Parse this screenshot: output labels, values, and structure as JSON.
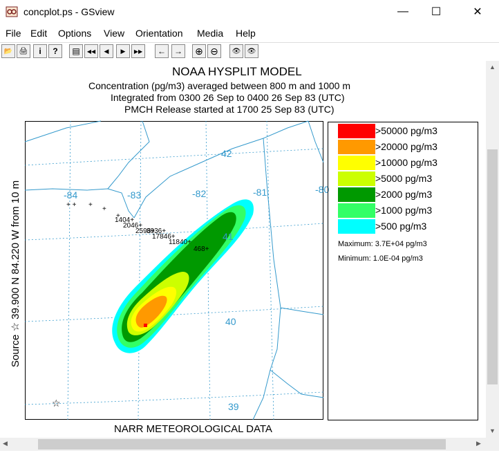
{
  "window": {
    "title": "concplot.ps - GSview",
    "minimize": "—",
    "maximize": "☐",
    "close": "✕"
  },
  "menu": [
    "File",
    "Edit",
    "Options",
    "View",
    "Orientation",
    "Media",
    "Help"
  ],
  "toolbar": [
    {
      "name": "open-icon",
      "glyph": "📂"
    },
    {
      "name": "print-icon",
      "glyph": "🖨"
    },
    {
      "name": "info-icon",
      "glyph": "i"
    },
    {
      "name": "help-icon",
      "glyph": "?"
    },
    {
      "name": "goto-page-icon",
      "glyph": "▤"
    },
    {
      "name": "first-page-icon",
      "glyph": "◀◀"
    },
    {
      "name": "prev-page-icon",
      "glyph": "◀"
    },
    {
      "name": "next-page-icon",
      "glyph": "▶"
    },
    {
      "name": "last-page-icon",
      "glyph": "▶▶"
    },
    {
      "name": "back-icon",
      "glyph": "←"
    },
    {
      "name": "forward-icon",
      "glyph": "→"
    },
    {
      "name": "zoom-in-icon",
      "glyph": "⊕"
    },
    {
      "name": "zoom-out-icon",
      "glyph": "⊖"
    },
    {
      "name": "view-abc-icon",
      "glyph": "👁"
    },
    {
      "name": "view-full-icon",
      "glyph": "👁"
    }
  ],
  "plot": {
    "title": "NOAA HYSPLIT MODEL",
    "line1": "Concentration  (pg/m3) averaged between   800 m and  1000 m",
    "line2": "Integrated from 0300 26 Sep to 0400 26 Sep 83 (UTC)",
    "line3": "PMCH Release started at 1700 25 Sep 83 (UTC)",
    "side_label": "Source ☆  39.900  N  84.220  W        from   10 m",
    "footer": "NARR METEOROLOGICAL DATA",
    "lat_labels": [
      "42",
      "41",
      "40",
      "39"
    ],
    "lon_labels": [
      "-84",
      "-83",
      "-82",
      "-81",
      "-80"
    ],
    "sampler_labels": [
      "1404+",
      "2046+",
      "2596+",
      "3936+",
      "17846+",
      "11840+",
      "468+"
    ]
  },
  "legend": {
    "items": [
      {
        "label": ">50000 pg/m3",
        "color": "#ff0000"
      },
      {
        "label": ">20000 pg/m3",
        "color": "#ff9900"
      },
      {
        "label": ">10000 pg/m3",
        "color": "#ffff00"
      },
      {
        "label": ">5000 pg/m3",
        "color": "#ccff00"
      },
      {
        "label": ">2000 pg/m3",
        "color": "#009900"
      },
      {
        "label": ">1000 pg/m3",
        "color": "#33ff66"
      },
      {
        "label": ">500 pg/m3",
        "color": "#00ffff"
      }
    ],
    "maximum": "Maximum: 3.7E+04 pg/m3",
    "minimum": "Minimum: 1.0E-04 pg/m3"
  },
  "colors": {
    "grid": "#3399cc",
    "map": "#3399cc"
  }
}
